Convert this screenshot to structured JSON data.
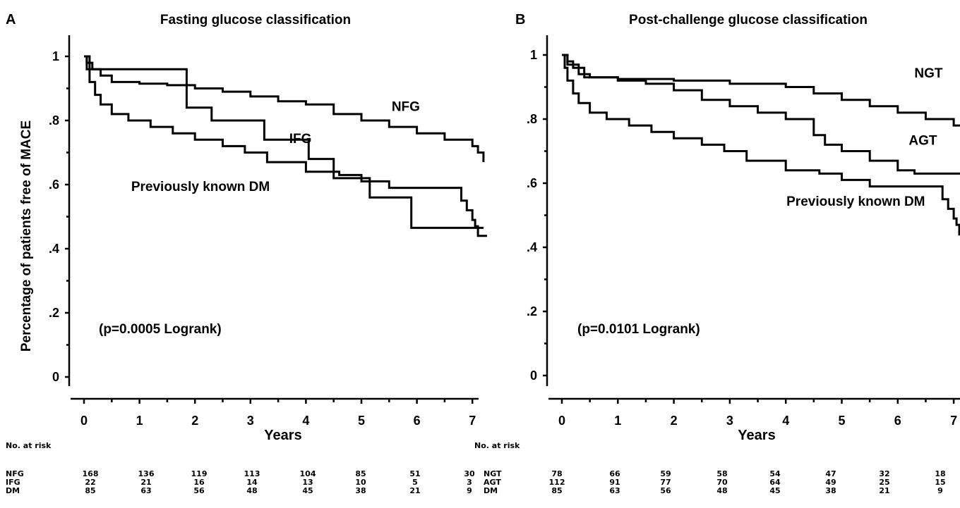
{
  "ylabel": "Percentage of patients free of MACE",
  "risk_header": "No. at risk",
  "chart_data": [
    {
      "type": "line",
      "panel": "A",
      "title": "Fasting glucose classification",
      "xlabel": "Years",
      "ylabel": "Percentage of patients free of MACE",
      "xlim": [
        0,
        7.2
      ],
      "ylim": [
        -0.05,
        1.05
      ],
      "x_ticks": [
        "0",
        "1",
        "2",
        "3",
        "4",
        "5",
        "6",
        "7"
      ],
      "y_ticks": [
        "0",
        ".2",
        ".4",
        ".6",
        ".8",
        "1"
      ],
      "annotation": "(p=0.0005 Logrank)",
      "series": [
        {
          "name": "NFG",
          "label_pos": [
            5.8,
            0.83
          ],
          "points": [
            [
              0,
              1
            ],
            [
              0.05,
              0.98
            ],
            [
              0.15,
              0.96
            ],
            [
              0.3,
              0.94
            ],
            [
              0.5,
              0.92
            ],
            [
              1.0,
              0.915
            ],
            [
              1.5,
              0.91
            ],
            [
              2.0,
              0.9
            ],
            [
              2.5,
              0.89
            ],
            [
              3.0,
              0.875
            ],
            [
              3.5,
              0.86
            ],
            [
              4.0,
              0.85
            ],
            [
              4.5,
              0.82
            ],
            [
              5.0,
              0.8
            ],
            [
              5.5,
              0.78
            ],
            [
              6.0,
              0.76
            ],
            [
              6.5,
              0.74
            ],
            [
              7.0,
              0.72
            ],
            [
              7.1,
              0.7
            ],
            [
              7.2,
              0.67
            ]
          ]
        },
        {
          "name": "IFG",
          "label_pos": [
            3.9,
            0.73
          ],
          "points": [
            [
              0,
              1
            ],
            [
              0.1,
              0.96
            ],
            [
              1.85,
              0.96
            ],
            [
              1.85,
              0.84
            ],
            [
              2.3,
              0.84
            ],
            [
              2.3,
              0.8
            ],
            [
              3.25,
              0.8
            ],
            [
              3.25,
              0.74
            ],
            [
              4.05,
              0.74
            ],
            [
              4.05,
              0.68
            ],
            [
              4.5,
              0.68
            ],
            [
              4.5,
              0.62
            ],
            [
              5.15,
              0.62
            ],
            [
              5.15,
              0.56
            ],
            [
              5.9,
              0.56
            ],
            [
              5.9,
              0.465
            ],
            [
              7.2,
              0.465
            ]
          ]
        },
        {
          "name": "Previously known DM",
          "label_pos": [
            2.1,
            0.58
          ],
          "points": [
            [
              0,
              1
            ],
            [
              0.05,
              0.96
            ],
            [
              0.1,
              0.92
            ],
            [
              0.2,
              0.88
            ],
            [
              0.3,
              0.85
            ],
            [
              0.5,
              0.82
            ],
            [
              0.8,
              0.8
            ],
            [
              1.2,
              0.78
            ],
            [
              1.6,
              0.76
            ],
            [
              2.0,
              0.74
            ],
            [
              2.5,
              0.72
            ],
            [
              2.9,
              0.7
            ],
            [
              3.3,
              0.67
            ],
            [
              4.0,
              0.64
            ],
            [
              4.6,
              0.63
            ],
            [
              5.0,
              0.61
            ],
            [
              5.5,
              0.59
            ],
            [
              6.7,
              0.59
            ],
            [
              6.8,
              0.55
            ],
            [
              6.9,
              0.52
            ],
            [
              7.0,
              0.49
            ],
            [
              7.05,
              0.47
            ],
            [
              7.1,
              0.44
            ],
            [
              7.5,
              0.44
            ]
          ]
        }
      ],
      "risk_table": {
        "rows": [
          {
            "label": "NFG",
            "values": [
              "168",
              "136",
              "119",
              "113",
              "104",
              "85",
              "51",
              "30"
            ]
          },
          {
            "label": "IFG",
            "values": [
              "22",
              "21",
              "16",
              "14",
              "13",
              "10",
              "5",
              "3"
            ]
          },
          {
            "label": "DM",
            "values": [
              "85",
              "63",
              "56",
              "48",
              "45",
              "38",
              "21",
              "9"
            ]
          }
        ]
      }
    },
    {
      "type": "line",
      "panel": "B",
      "title": "Post-challenge glucose classification",
      "xlabel": "Years",
      "ylabel": "",
      "xlim": [
        0,
        7.2
      ],
      "ylim": [
        -0.05,
        1.05
      ],
      "x_ticks": [
        "0",
        "1",
        "2",
        "3",
        "4",
        "5",
        "6",
        "7"
      ],
      "y_ticks": [
        "0",
        ".2",
        ".4",
        ".6",
        ".8",
        "1"
      ],
      "annotation": "(p=0.0101 Logrank)",
      "series": [
        {
          "name": "NGT",
          "label_pos": [
            6.55,
            0.93
          ],
          "points": [
            [
              0,
              1
            ],
            [
              0.1,
              0.98
            ],
            [
              0.2,
              0.96
            ],
            [
              0.4,
              0.93
            ],
            [
              1.0,
              0.925
            ],
            [
              2.0,
              0.92
            ],
            [
              3.0,
              0.91
            ],
            [
              4.0,
              0.9
            ],
            [
              4.5,
              0.88
            ],
            [
              5.0,
              0.86
            ],
            [
              5.5,
              0.84
            ],
            [
              6.0,
              0.82
            ],
            [
              6.5,
              0.8
            ],
            [
              7.0,
              0.78
            ],
            [
              7.5,
              0.78
            ]
          ]
        },
        {
          "name": "AGT",
          "label_pos": [
            6.45,
            0.72
          ],
          "points": [
            [
              0,
              1
            ],
            [
              0.1,
              0.97
            ],
            [
              0.3,
              0.94
            ],
            [
              0.5,
              0.93
            ],
            [
              1.0,
              0.92
            ],
            [
              1.5,
              0.91
            ],
            [
              2.0,
              0.89
            ],
            [
              2.5,
              0.86
            ],
            [
              3.0,
              0.84
            ],
            [
              3.5,
              0.82
            ],
            [
              4.0,
              0.8
            ],
            [
              4.5,
              0.75
            ],
            [
              4.7,
              0.72
            ],
            [
              5.0,
              0.7
            ],
            [
              5.5,
              0.67
            ],
            [
              6.0,
              0.64
            ],
            [
              6.3,
              0.63
            ],
            [
              7.2,
              0.63
            ],
            [
              7.2,
              0.57
            ],
            [
              7.5,
              0.57
            ]
          ]
        },
        {
          "name": "Previously known DM",
          "label_pos": [
            5.25,
            0.53
          ],
          "points": [
            [
              0,
              1
            ],
            [
              0.05,
              0.96
            ],
            [
              0.1,
              0.92
            ],
            [
              0.2,
              0.88
            ],
            [
              0.3,
              0.85
            ],
            [
              0.5,
              0.82
            ],
            [
              0.8,
              0.8
            ],
            [
              1.2,
              0.78
            ],
            [
              1.6,
              0.76
            ],
            [
              2.0,
              0.74
            ],
            [
              2.5,
              0.72
            ],
            [
              2.9,
              0.7
            ],
            [
              3.3,
              0.67
            ],
            [
              4.0,
              0.64
            ],
            [
              4.6,
              0.63
            ],
            [
              5.0,
              0.61
            ],
            [
              5.5,
              0.59
            ],
            [
              6.7,
              0.59
            ],
            [
              6.8,
              0.55
            ],
            [
              6.9,
              0.52
            ],
            [
              7.0,
              0.49
            ],
            [
              7.05,
              0.47
            ],
            [
              7.1,
              0.44
            ],
            [
              7.5,
              0.44
            ]
          ]
        }
      ],
      "risk_table": {
        "rows": [
          {
            "label": "NGT",
            "values": [
              "78",
              "66",
              "59",
              "58",
              "54",
              "47",
              "32",
              "18"
            ]
          },
          {
            "label": "AGT",
            "values": [
              "112",
              "91",
              "77",
              "70",
              "64",
              "49",
              "25",
              "15"
            ]
          },
          {
            "label": "DM",
            "values": [
              "85",
              "63",
              "56",
              "48",
              "45",
              "38",
              "21",
              "9"
            ]
          }
        ]
      }
    }
  ]
}
